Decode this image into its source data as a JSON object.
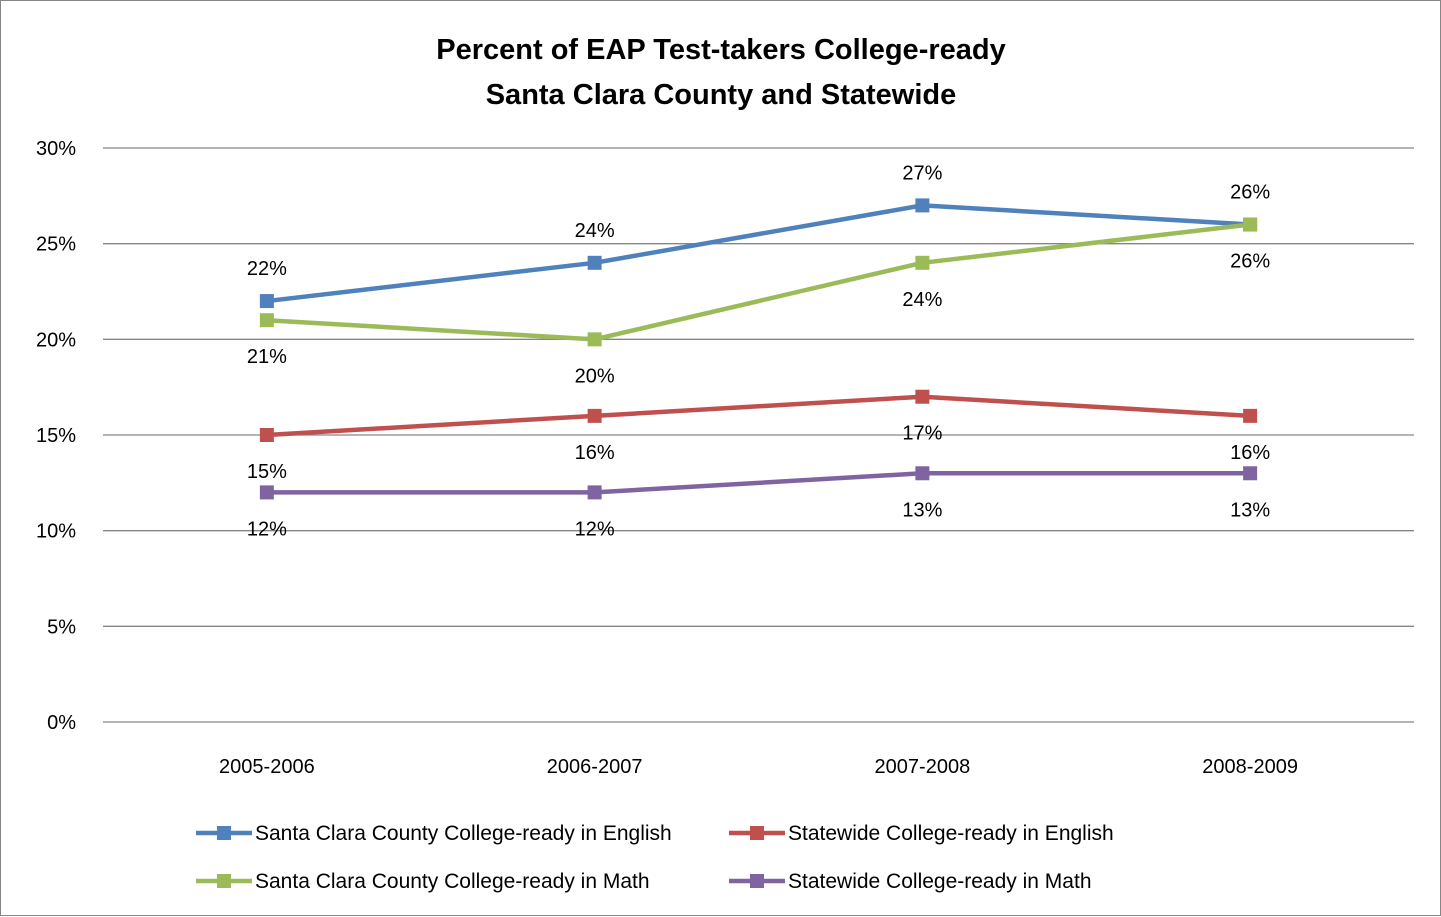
{
  "chart_data": {
    "type": "line",
    "title": "Percent of EAP Test-takers College-ready",
    "subtitle": "Santa Clara County and Statewide",
    "xlabel": "",
    "ylabel": "",
    "categories": [
      "2005-2006",
      "2006-2007",
      "2007-2008",
      "2008-2009"
    ],
    "ylim": [
      0,
      30
    ],
    "yticks": [
      0,
      5,
      10,
      15,
      20,
      25,
      30
    ],
    "ytick_labels": [
      "0%",
      "5%",
      "10%",
      "15%",
      "20%",
      "25%",
      "30%"
    ],
    "grid": true,
    "legend_position": "bottom",
    "series": [
      {
        "name": "Santa Clara County College-ready in English",
        "values": [
          22,
          24,
          27,
          26
        ],
        "labels": [
          "22%",
          "24%",
          "27%",
          "26%"
        ],
        "color": "#4F81BD",
        "label_position": "above"
      },
      {
        "name": "Statewide College-ready in English",
        "values": [
          15,
          16,
          17,
          16
        ],
        "labels": [
          "15%",
          "16%",
          "17%",
          "16%"
        ],
        "color": "#C0504D",
        "label_position": "below"
      },
      {
        "name": "Santa Clara County College-ready in Math",
        "values": [
          21,
          20,
          24,
          26
        ],
        "labels": [
          "21%",
          "20%",
          "24%",
          "26%"
        ],
        "color": "#9BBB59",
        "label_position": "below"
      },
      {
        "name": "Statewide College-ready in Math",
        "values": [
          12,
          12,
          13,
          13
        ],
        "labels": [
          "12%",
          "12%",
          "13%",
          "13%"
        ],
        "color": "#8064A2",
        "label_position": "below"
      }
    ]
  }
}
